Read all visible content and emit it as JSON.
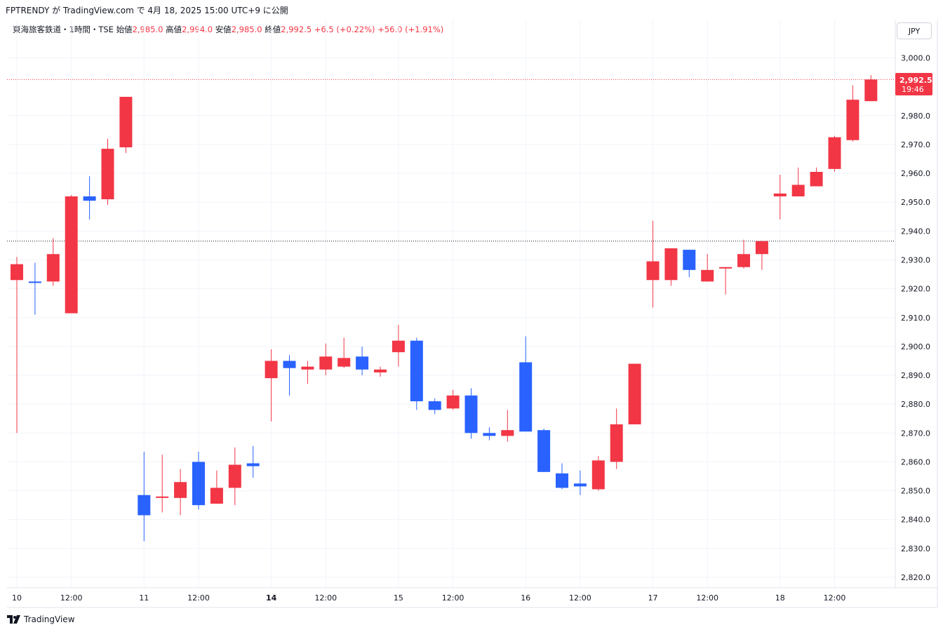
{
  "header": {
    "publish_line": "FPTRENDY が TradingView.com で 4月 18, 2025 15:00 UTC+9 に公開"
  },
  "legend": {
    "symbol": "東海旅客鉄道・1時間・TSE",
    "open_label": "始値",
    "open_value": "2,985.0",
    "high_label": "高値",
    "high_value": "2,994.0",
    "low_label": "安値",
    "low_value": "2,985.0",
    "close_label": "終値",
    "close_value": "2,992.5",
    "change": "+6.5 (+0.22%)",
    "change2": "+56.0 (+1.91%)"
  },
  "currency_button": "JPY",
  "price_badge": {
    "price": "2,992.5",
    "countdown": "19:46"
  },
  "brand": "TradingView",
  "colors": {
    "up": "#f23645",
    "down": "#2962ff",
    "grid": "#f0f3fa",
    "text": "#131722"
  },
  "chart_data": {
    "type": "candlestick",
    "ylim": [
      2815,
      3005
    ],
    "y_ticks": [
      2820,
      2830,
      2840,
      2850,
      2860,
      2870,
      2880,
      2890,
      2900,
      2910,
      2920,
      2930,
      2940,
      2950,
      2960,
      2970,
      2980,
      3000
    ],
    "y_tick_labels": [
      "2,820.0",
      "2,830.0",
      "2,840.0",
      "2,850.0",
      "2,860.0",
      "2,870.0",
      "2,880.0",
      "2,890.0",
      "2,900.0",
      "2,910.0",
      "2,920.0",
      "2,930.0",
      "2,940.0",
      "2,950.0",
      "2,960.0",
      "2,970.0",
      "2,980.0",
      "3,000.0"
    ],
    "x_labels": [
      {
        "index": 0,
        "text": "10",
        "bold": false
      },
      {
        "index": 3,
        "text": "12:00",
        "bold": false
      },
      {
        "index": 7,
        "text": "11",
        "bold": false
      },
      {
        "index": 10,
        "text": "12:00",
        "bold": false
      },
      {
        "index": 14,
        "text": "14",
        "bold": true
      },
      {
        "index": 17,
        "text": "12:00",
        "bold": false
      },
      {
        "index": 21,
        "text": "15",
        "bold": false
      },
      {
        "index": 24,
        "text": "12:00",
        "bold": false
      },
      {
        "index": 28,
        "text": "16",
        "bold": false
      },
      {
        "index": 31,
        "text": "12:00",
        "bold": false
      },
      {
        "index": 35,
        "text": "17",
        "bold": false
      },
      {
        "index": 38,
        "text": "12:00",
        "bold": false
      },
      {
        "index": 42,
        "text": "18",
        "bold": false
      },
      {
        "index": 45,
        "text": "12:00",
        "bold": false
      }
    ],
    "current_price": 2992.5,
    "reference_price": 2936.5,
    "candles": [
      {
        "o": 2923.0,
        "h": 2931.0,
        "l": 2870.0,
        "c": 2928.5
      },
      {
        "o": 2922.5,
        "h": 2929.0,
        "l": 2911.0,
        "c": 2922.0
      },
      {
        "o": 2922.5,
        "h": 2937.5,
        "l": 2921.0,
        "c": 2932.0
      },
      {
        "o": 2911.5,
        "h": 2952.5,
        "l": 2911.5,
        "c": 2952.0
      },
      {
        "o": 2952.0,
        "h": 2959.0,
        "l": 2944.0,
        "c": 2950.5
      },
      {
        "o": 2951.0,
        "h": 2972.0,
        "l": 2949.0,
        "c": 2968.5
      },
      {
        "o": 2969.0,
        "h": 2986.5,
        "l": 2967.0,
        "c": 2986.5
      },
      {
        "o": 2848.5,
        "h": 2863.5,
        "l": 2832.5,
        "c": 2841.5
      },
      {
        "o": 2848.0,
        "h": 2862.5,
        "l": 2842.5,
        "c": 2848.0
      },
      {
        "o": 2847.5,
        "h": 2857.5,
        "l": 2841.5,
        "c": 2853.0
      },
      {
        "o": 2860.0,
        "h": 2863.5,
        "l": 2843.5,
        "c": 2845.0
      },
      {
        "o": 2845.5,
        "h": 2857.0,
        "l": 2845.5,
        "c": 2851.0
      },
      {
        "o": 2851.0,
        "h": 2865.0,
        "l": 2845.0,
        "c": 2859.0
      },
      {
        "o": 2859.5,
        "h": 2865.5,
        "l": 2854.5,
        "c": 2858.5
      },
      {
        "o": 2889.0,
        "h": 2899.0,
        "l": 2874.0,
        "c": 2895.0
      },
      {
        "o": 2895.0,
        "h": 2897.0,
        "l": 2883.0,
        "c": 2892.5
      },
      {
        "o": 2892.0,
        "h": 2895.0,
        "l": 2887.0,
        "c": 2893.0
      },
      {
        "o": 2892.0,
        "h": 2901.0,
        "l": 2890.0,
        "c": 2896.5
      },
      {
        "o": 2893.0,
        "h": 2903.0,
        "l": 2892.5,
        "c": 2896.0
      },
      {
        "o": 2896.5,
        "h": 2900.0,
        "l": 2890.0,
        "c": 2892.0
      },
      {
        "o": 2891.0,
        "h": 2893.0,
        "l": 2889.5,
        "c": 2892.0
      },
      {
        "o": 2898.0,
        "h": 2907.5,
        "l": 2893.0,
        "c": 2902.0
      },
      {
        "o": 2902.0,
        "h": 2903.0,
        "l": 2878.0,
        "c": 2881.0
      },
      {
        "o": 2881.0,
        "h": 2882.0,
        "l": 2876.5,
        "c": 2878.0
      },
      {
        "o": 2878.5,
        "h": 2885.0,
        "l": 2878.0,
        "c": 2883.0
      },
      {
        "o": 2883.0,
        "h": 2885.5,
        "l": 2868.0,
        "c": 2870.0
      },
      {
        "o": 2870.0,
        "h": 2872.0,
        "l": 2867.5,
        "c": 2869.0
      },
      {
        "o": 2869.0,
        "h": 2878.0,
        "l": 2867.0,
        "c": 2871.0
      },
      {
        "o": 2894.5,
        "h": 2903.5,
        "l": 2870.5,
        "c": 2870.5
      },
      {
        "o": 2871.0,
        "h": 2871.5,
        "l": 2856.5,
        "c": 2856.5
      },
      {
        "o": 2856.0,
        "h": 2859.5,
        "l": 2850.5,
        "c": 2851.0
      },
      {
        "o": 2852.5,
        "h": 2857.0,
        "l": 2848.5,
        "c": 2851.5
      },
      {
        "o": 2850.5,
        "h": 2862.0,
        "l": 2850.0,
        "c": 2860.5
      },
      {
        "o": 2860.0,
        "h": 2878.5,
        "l": 2857.5,
        "c": 2873.0
      },
      {
        "o": 2873.0,
        "h": 2894.0,
        "l": 2873.0,
        "c": 2894.0
      },
      {
        "o": 2923.0,
        "h": 2943.5,
        "l": 2913.5,
        "c": 2929.5
      },
      {
        "o": 2923.0,
        "h": 2934.0,
        "l": 2921.0,
        "c": 2934.0
      },
      {
        "o": 2933.5,
        "h": 2933.5,
        "l": 2924.0,
        "c": 2926.5
      },
      {
        "o": 2922.5,
        "h": 2932.0,
        "l": 2922.5,
        "c": 2926.5
      },
      {
        "o": 2927.0,
        "h": 2927.5,
        "l": 2918.0,
        "c": 2927.5
      },
      {
        "o": 2927.5,
        "h": 2937.0,
        "l": 2927.0,
        "c": 2932.0
      },
      {
        "o": 2932.0,
        "h": 2936.5,
        "l": 2926.5,
        "c": 2936.5
      },
      {
        "o": 2952.0,
        "h": 2959.5,
        "l": 2944.0,
        "c": 2953.0
      },
      {
        "o": 2952.0,
        "h": 2962.0,
        "l": 2952.0,
        "c": 2956.0
      },
      {
        "o": 2955.5,
        "h": 2962.0,
        "l": 2955.5,
        "c": 2960.5
      },
      {
        "o": 2961.5,
        "h": 2973.0,
        "l": 2960.5,
        "c": 2972.5
      },
      {
        "o": 2971.5,
        "h": 2990.5,
        "l": 2971.0,
        "c": 2985.5
      },
      {
        "o": 2985.0,
        "h": 2994.0,
        "l": 2985.0,
        "c": 2992.5
      }
    ]
  }
}
